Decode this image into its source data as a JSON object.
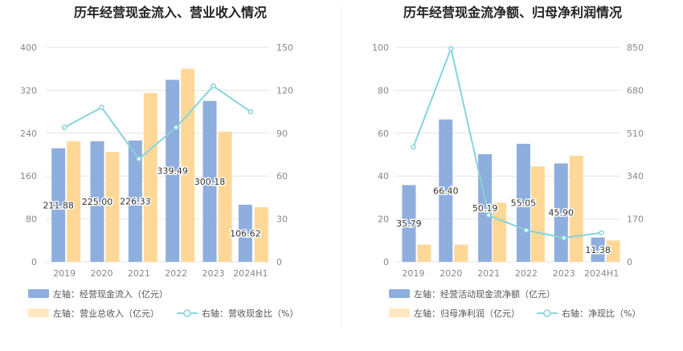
{
  "colors": {
    "bar_left": "#8eaedd",
    "bar_right": "#ffd897",
    "line": "#87d3dc",
    "grid": "#e4e4e4",
    "divider": "#eeeeee"
  },
  "chart_data": [
    {
      "type": "bar",
      "title": "历年经营现金流入、营业收入情况",
      "categories": [
        "2019",
        "2020",
        "2021",
        "2022",
        "2023",
        "2024H1"
      ],
      "left_axis": {
        "ticks": [
          "0",
          "80",
          "160",
          "240",
          "320",
          "400"
        ],
        "ylim": [
          0,
          400
        ]
      },
      "right_axis": {
        "ticks": [
          "0",
          "30",
          "60",
          "90",
          "120",
          "150"
        ],
        "ylim": [
          0,
          150
        ]
      },
      "series": [
        {
          "name": "左轴：经营现金流入（亿元）",
          "axis": "left",
          "kind": "bar",
          "values": [
            211.88,
            225.0,
            226.33,
            339.49,
            300.18,
            106.62
          ],
          "labels": [
            "211.88",
            "225.00",
            "226.33",
            "339.49",
            "300.18",
            "106.62"
          ]
        },
        {
          "name": "左轴：营业总收入（亿元）",
          "axis": "left",
          "kind": "bar",
          "values": [
            225,
            205,
            315,
            360,
            243,
            102
          ]
        },
        {
          "name": "右轴：营收现金比（%）",
          "axis": "right",
          "kind": "line",
          "values": [
            94,
            108,
            72,
            94,
            123,
            105
          ]
        }
      ]
    },
    {
      "type": "bar",
      "title": "历年经营现金流净额、归母净利润情况",
      "categories": [
        "2019",
        "2020",
        "2021",
        "2022",
        "2023",
        "2024H1"
      ],
      "left_axis": {
        "ticks": [
          "0",
          "20",
          "40",
          "60",
          "80",
          "100"
        ],
        "ylim": [
          0,
          100
        ]
      },
      "right_axis": {
        "ticks": [
          "0",
          "170",
          "340",
          "510",
          "680",
          "850"
        ],
        "ylim": [
          0,
          850
        ]
      },
      "series": [
        {
          "name": "左轴：经营活动现金流净额（亿元）",
          "axis": "left",
          "kind": "bar",
          "values": [
            35.79,
            66.4,
            50.19,
            55.05,
            45.9,
            11.38
          ],
          "labels": [
            "35.79",
            "66.40",
            "50.19",
            "55.05",
            "45.90",
            "11.38"
          ]
        },
        {
          "name": "左轴：归母净利润（亿元）",
          "axis": "left",
          "kind": "bar",
          "values": [
            8,
            8,
            27.5,
            44.5,
            49.5,
            10
          ]
        },
        {
          "name": "右轴：净现比（%）",
          "axis": "right",
          "kind": "line",
          "values": [
            455,
            845,
            185,
            125,
            95,
            115
          ]
        }
      ]
    }
  ]
}
